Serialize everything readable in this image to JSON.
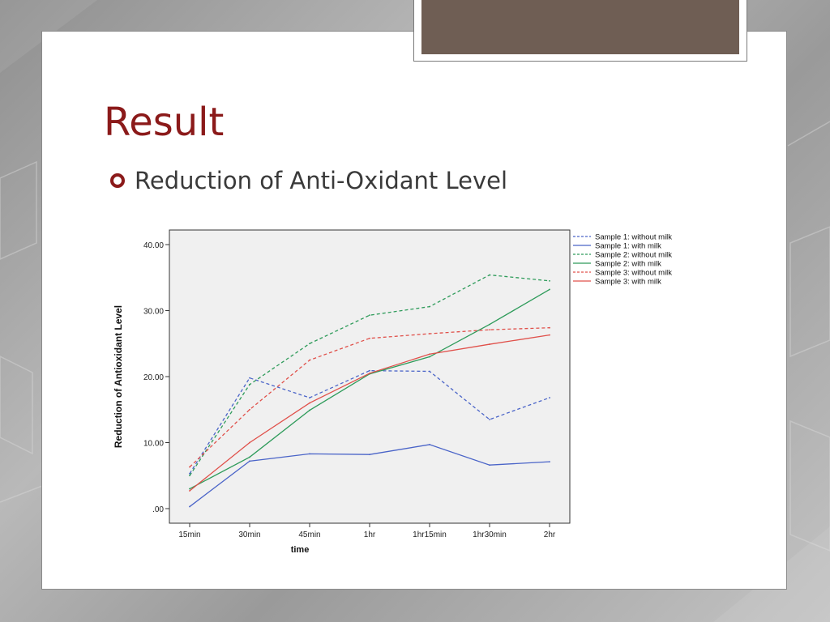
{
  "theme": {
    "title_color": "#8b1a1a",
    "accent_color": "#6f5e54",
    "plot_bg": "#f0f0f0"
  },
  "slide": {
    "title": "Result",
    "bullet_icon": "circle-bullet-icon",
    "bullet": "Reduction of Anti-Oxidant Level"
  },
  "chart_data": {
    "type": "line",
    "xlabel": "time",
    "ylabel": "Reduction of Antioxidant Level",
    "categories": [
      "15min",
      "30min",
      "45min",
      "1hr",
      "1hr15min",
      "1hr30min",
      "2hr"
    ],
    "ylim": [
      0,
      40
    ],
    "yticks": [
      {
        "value": 0,
        "label": ".00"
      },
      {
        "value": 10,
        "label": "10.00"
      },
      {
        "value": 20,
        "label": "20.00"
      },
      {
        "value": 30,
        "label": "30.00"
      },
      {
        "value": 40,
        "label": "40.00"
      }
    ],
    "grid": false,
    "legend_position": "right-top",
    "series": [
      {
        "name": "Sample 1: without milk",
        "color": "#4a64c8",
        "dashed": true,
        "values": [
          5.3,
          19.8,
          16.8,
          20.9,
          20.8,
          13.5,
          16.8
        ]
      },
      {
        "name": "Sample 1: with milk",
        "color": "#4a64c8",
        "dashed": false,
        "values": [
          0.3,
          7.2,
          8.3,
          8.2,
          9.7,
          6.6,
          7.1
        ]
      },
      {
        "name": "Sample 2: without milk",
        "color": "#2e9b5a",
        "dashed": true,
        "values": [
          5.0,
          18.8,
          25.0,
          29.3,
          30.6,
          35.4,
          34.5
        ]
      },
      {
        "name": "Sample 2: with milk",
        "color": "#2e9b5a",
        "dashed": false,
        "values": [
          3.0,
          7.8,
          14.9,
          20.4,
          23.0,
          27.9,
          33.2
        ]
      },
      {
        "name": "Sample 3: without milk",
        "color": "#e0504a",
        "dashed": true,
        "values": [
          6.3,
          15.0,
          22.5,
          25.8,
          26.5,
          27.1,
          27.4
        ]
      },
      {
        "name": "Sample 3: with milk",
        "color": "#e0504a",
        "dashed": false,
        "values": [
          2.7,
          10.0,
          16.0,
          20.5,
          23.4,
          24.9,
          26.3
        ]
      }
    ]
  }
}
